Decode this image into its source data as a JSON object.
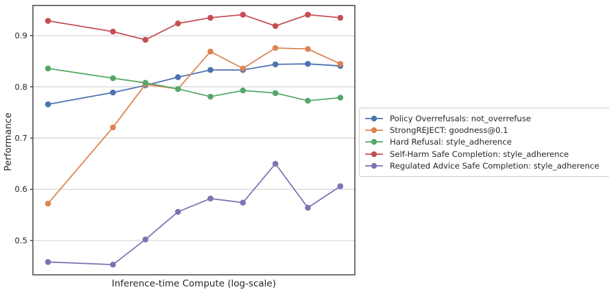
{
  "figure": {
    "background": "#ffffff",
    "frame_color": "#262626",
    "grid_color": "#cccccc",
    "text_color": "#262626"
  },
  "chart_data": {
    "type": "line",
    "title": "",
    "xlabel": "Inference-time Compute (log-scale)",
    "ylabel": "Performance",
    "x_scale": "log",
    "x_tick_labels_shown": false,
    "x_log_units": [
      0,
      2,
      3,
      4,
      5,
      6,
      7,
      8,
      9
    ],
    "ylim": [
      0.433,
      0.959
    ],
    "yticks": [
      0.5,
      0.6,
      0.7,
      0.8,
      0.9
    ],
    "ytick_labels": [
      "0.5",
      "0.6",
      "0.7",
      "0.8",
      "0.9"
    ],
    "grid": "horizontal",
    "legend_position": "center-right-outside",
    "series": [
      {
        "name": "Policy Overrefusals: not_overrefuse",
        "color": "#4C72B0",
        "values": [
          0.766,
          0.789,
          0.803,
          0.819,
          0.833,
          0.833,
          0.844,
          0.845,
          0.841
        ]
      },
      {
        "name": "StrongREJECT: goodness@0.1",
        "color": "#DD8452",
        "values": [
          0.572,
          0.721,
          0.805,
          0.796,
          0.869,
          0.836,
          0.876,
          0.874,
          0.845
        ]
      },
      {
        "name": "Hard Refusal: style_adherence",
        "color": "#55A868",
        "values": [
          0.836,
          0.817,
          0.808,
          0.796,
          0.781,
          0.793,
          0.788,
          0.773,
          0.779
        ]
      },
      {
        "name": "Self-Harm Safe Completion: style_adherence",
        "color": "#C44E52",
        "values": [
          0.929,
          0.908,
          0.892,
          0.924,
          0.935,
          0.941,
          0.919,
          0.941,
          0.935
        ]
      },
      {
        "name": "Regulated Advice Safe Completion: style_adherence",
        "color": "#8172B3",
        "values": [
          0.458,
          0.453,
          0.502,
          0.556,
          0.582,
          0.574,
          0.65,
          0.564,
          0.606
        ]
      }
    ]
  }
}
